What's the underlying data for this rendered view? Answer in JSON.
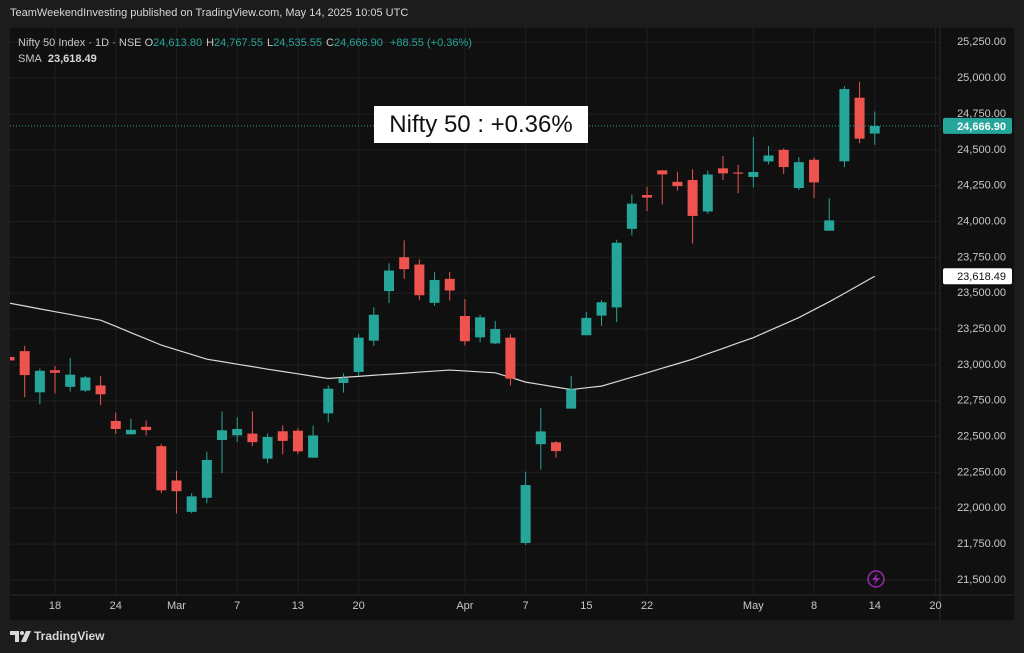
{
  "header": {
    "text": "TeamWeekendInvesting published on TradingView.com, May 14, 2025 10:05 UTC"
  },
  "chart_data": {
    "type": "candlestick",
    "categories": [
      null,
      null,
      null,
      "18",
      null,
      null,
      null,
      "24",
      null,
      null,
      null,
      "Mar",
      null,
      null,
      null,
      "7",
      null,
      null,
      null,
      "13",
      null,
      null,
      null,
      "20",
      null,
      null,
      null,
      null,
      null,
      null,
      "Apr",
      null,
      null,
      null,
      "7",
      null,
      null,
      null,
      "15",
      null,
      null,
      null,
      "22",
      null,
      null,
      null,
      null,
      null,
      null,
      "May",
      null,
      null,
      null,
      "8",
      null,
      null,
      null,
      "14",
      null,
      null,
      null,
      "20"
    ],
    "open": [
      23055,
      23096,
      22809,
      22963,
      22847,
      22821,
      22857,
      22609,
      22516,
      22568,
      22433,
      22194,
      21975,
      22073,
      22476,
      22509,
      22521,
      22346,
      22537,
      22541,
      22353,
      22662,
      22874,
      22951,
      23169,
      23515,
      23751,
      23700,
      23433,
      23600,
      23341,
      23192,
      23150,
      23190,
      21758,
      22447,
      22460,
      22695,
      23207,
      23344,
      23401,
      23949,
      24185,
      24357,
      24277,
      24290,
      24070,
      24371,
      24342,
      24311,
      24419,
      24500,
      24234,
      24431,
      23936,
      24420,
      24864,
      24613.8,
      null,
      null,
      null,
      null
    ],
    "high": [
      23235,
      23133,
      22974,
      22992,
      23049,
      22923,
      22921,
      22668,
      22625,
      22613,
      22450,
      22261,
      22105,
      22395,
      22676,
      22634,
      22676,
      22522,
      22578,
      22558,
      22577,
      22857,
      22940,
      23216,
      23402,
      23708,
      23869,
      23736,
      23646,
      23649,
      23459,
      23350,
      23306,
      23214,
      22255,
      22698,
      22468,
      22924,
      23368,
      23452,
      23873,
      24189,
      24242,
      24359,
      24348,
      24365,
      24355,
      24457,
      24396,
      24589,
      24526,
      24510,
      24449,
      24447,
      24164,
      24944,
      24974,
      24767.55,
      null,
      null,
      null,
      null
    ],
    "low": [
      22992,
      22775,
      22725,
      22801,
      22814,
      22812,
      22720,
      22518,
      22513,
      22508,
      22105,
      21964,
      21965,
      22035,
      22245,
      22464,
      22433,
      22315,
      22377,
      22377,
      22353,
      22599,
      22807,
      22923,
      23132,
      23433,
      23601,
      23451,
      23412,
      23450,
      23136,
      23158,
      23145,
      22857,
      21744,
      22270,
      22353,
      22695,
      23207,
      23273,
      23298,
      23903,
      24073,
      24119,
      24216,
      23847,
      24054,
      24290,
      24198,
      24238,
      24400,
      24331,
      24221,
      24164,
      23936,
      24378,
      24547,
      24535.55,
      null,
      null,
      null,
      null
    ],
    "close": [
      23031,
      22929,
      22959,
      22945,
      22932,
      22913,
      22795,
      22553,
      22547,
      22545,
      22125,
      22119,
      22083,
      22337,
      22544,
      22553,
      22461,
      22497,
      22470,
      22397,
      22508,
      22834,
      22907,
      23190,
      23350,
      23658,
      23668,
      23486,
      23592,
      23519,
      23165,
      23332,
      23250,
      22904,
      22162,
      22536,
      22399,
      22829,
      23328,
      23437,
      23852,
      24125,
      24167,
      24329,
      24247,
      24039,
      24328,
      24336,
      24334,
      24346,
      24461,
      24380,
      24414,
      24273,
      24008,
      24924,
      24578,
      24666.9,
      null,
      null,
      null,
      null
    ],
    "up_color": "#26a69a",
    "down_color": "#ef5350",
    "ylim": [
      21395,
      25350
    ],
    "yticks": [
      {
        "value": 21500,
        "label": "21,500.00"
      },
      {
        "value": 21750,
        "label": "21,750.00"
      },
      {
        "value": 22000,
        "label": "22,000.00"
      },
      {
        "value": 22250,
        "label": "22,250.00"
      },
      {
        "value": 22500,
        "label": "22,500.00"
      },
      {
        "value": 22750,
        "label": "22,750.00"
      },
      {
        "value": 23000,
        "label": "23,000.00"
      },
      {
        "value": 23250,
        "label": "23,250.00"
      },
      {
        "value": 23500,
        "label": "23,500.00"
      },
      {
        "value": 23750,
        "label": "23,750.00"
      },
      {
        "value": 24000,
        "label": "24,000.00"
      },
      {
        "value": 24250,
        "label": "24,250.00"
      },
      {
        "value": 24500,
        "label": "24,500.00"
      },
      {
        "value": 24750,
        "label": "24,750.00"
      },
      {
        "value": 25000,
        "label": "25,000.00"
      },
      {
        "value": 25250,
        "label": "25,250.00"
      }
    ],
    "grid": true,
    "legend": {
      "symbol": "Nifty 50 Index · 1D · NSE",
      "fields": [
        {
          "key": "O",
          "value": "24,613.80"
        },
        {
          "key": "H",
          "value": "24,767.55"
        },
        {
          "key": "L",
          "value": "24,535.55"
        },
        {
          "key": "C",
          "value": "24,666.90"
        }
      ],
      "change": "+88.55 (+0.36%)"
    },
    "sma": {
      "name": "SMA",
      "value_label": "23,618.49",
      "color": "#d9d9d9",
      "values": [
        23431,
        23411,
        23391,
        23371,
        23352,
        23332,
        23312,
        23269,
        23225,
        23182,
        23138,
        23105,
        23073,
        23040,
        23023,
        23005,
        22988,
        22970,
        22954,
        22938,
        22921,
        22905,
        22913,
        22920,
        22928,
        22935,
        22942,
        22950,
        22957,
        22964,
        22958,
        22951,
        22945,
        22913,
        22880,
        22863,
        22845,
        22828,
        22840,
        22852,
        22883,
        22914,
        22945,
        22977,
        23008,
        23040,
        23078,
        23115,
        23153,
        23190,
        23237,
        23283,
        23330,
        23385,
        23440,
        23499,
        23559,
        23618.49,
        null,
        null,
        null,
        null
      ]
    },
    "last_price_label": "24,666.90",
    "annotation": "Nifty 50 : +0.36%"
  },
  "footer": {
    "brand": "TradingView"
  }
}
